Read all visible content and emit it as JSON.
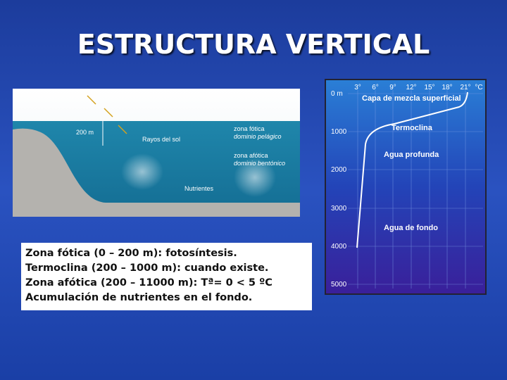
{
  "title": "ESTRUCTURA VERTICAL",
  "illustration": {
    "labels": [
      "200 m",
      "Rayos del sol",
      "zona fótica",
      "dominio pelágico",
      "zona afótica",
      "dominio bentónico",
      "Nutrientes"
    ]
  },
  "profile_chart": {
    "temperature_labels": [
      "3°",
      "6°",
      "9°",
      "12°",
      "15°",
      "18°",
      "21°",
      "°C"
    ],
    "depth_labels": [
      "0 m",
      "1000",
      "2000",
      "3000",
      "4000",
      "5000"
    ],
    "layer_labels": [
      "Capa de mezcla superficial",
      "Termoclina",
      "Agua profunda",
      "Agua de fondo"
    ]
  },
  "text_box": {
    "lines": [
      "Zona fótica (0 – 200 m): fotosíntesis.",
      "Termoclina (200 – 1000 m): cuando existe.",
      "Zona afótica (200 – 11000 m): Tª= 0 < 5 ºC",
      "Acumulación de nutrientes en el fondo."
    ]
  }
}
